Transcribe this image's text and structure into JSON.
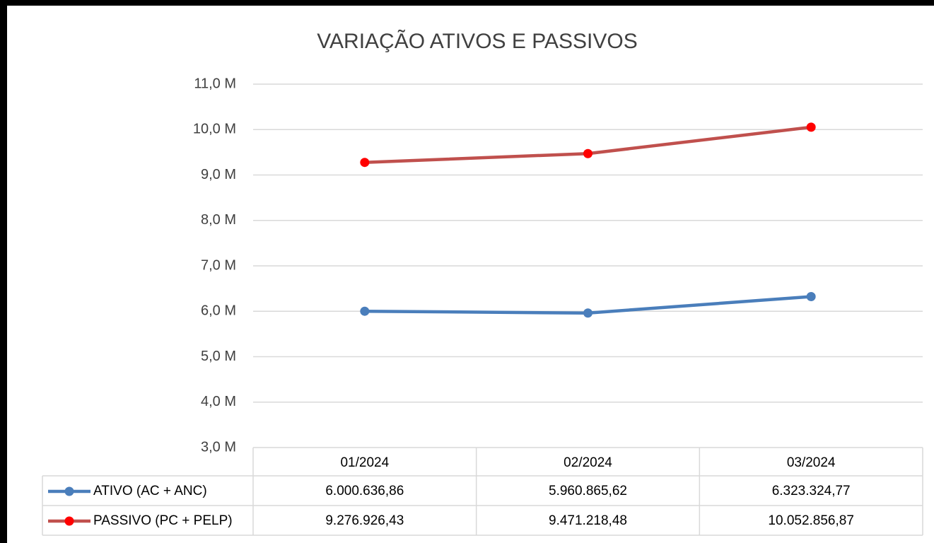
{
  "chart_data": {
    "type": "line",
    "title": "VARIAÇÃO ATIVOS E PASSIVOS",
    "categories": [
      "01/2024",
      "02/2024",
      "03/2024"
    ],
    "series": [
      {
        "name": "ATIVO (AC + ANC)",
        "color": "#4a7ebb",
        "marker_color": "#4a7ebb",
        "values": [
          6000636.86,
          5960865.62,
          6323324.77
        ],
        "value_labels": [
          "6.000.636,86",
          "5.960.865,62",
          "6.323.324,77"
        ]
      },
      {
        "name": "PASSIVO (PC + PELP)",
        "color": "#c0504d",
        "marker_color": "#ff0000",
        "values": [
          9276926.43,
          9471218.48,
          10052856.87
        ],
        "value_labels": [
          "9.276.926,43",
          "9.471.218,48",
          "10.052.856,87"
        ]
      }
    ],
    "ylim": [
      3000000,
      11000000
    ],
    "yticks": [
      {
        "value": 3000000,
        "label": "3,0 M"
      },
      {
        "value": 4000000,
        "label": "4,0 M"
      },
      {
        "value": 5000000,
        "label": "5,0 M"
      },
      {
        "value": 6000000,
        "label": "6,0 M"
      },
      {
        "value": 7000000,
        "label": "7,0 M"
      },
      {
        "value": 8000000,
        "label": "8,0 M"
      },
      {
        "value": 9000000,
        "label": "9,0 M"
      },
      {
        "value": 10000000,
        "label": "10,0 M"
      },
      {
        "value": 11000000,
        "label": "11,0 M"
      }
    ],
    "grid": true,
    "data_table": true
  }
}
